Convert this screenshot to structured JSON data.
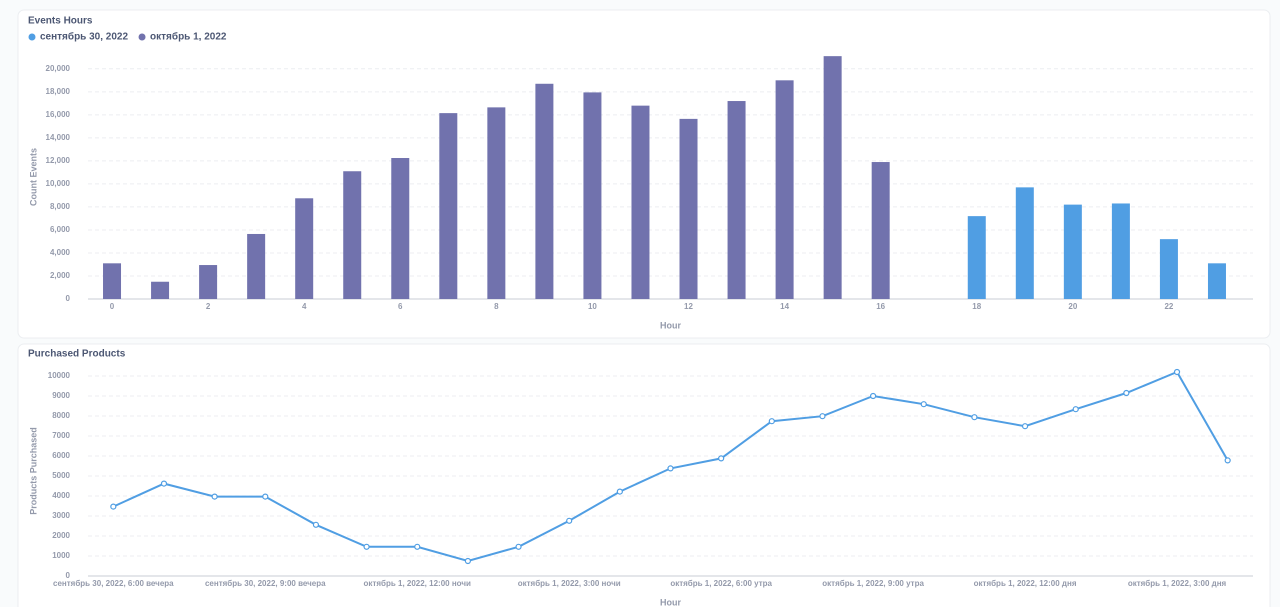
{
  "chart_data": [
    {
      "type": "bar",
      "title": "Events Hours",
      "x_label": "Hour",
      "y_label": "Count Events",
      "x": [
        0,
        1,
        2,
        3,
        4,
        5,
        6,
        7,
        8,
        9,
        10,
        11,
        12,
        13,
        14,
        15,
        16,
        17,
        18,
        19,
        20,
        21,
        22,
        23
      ],
      "series": [
        {
          "name": "сентябрь 30, 2022",
          "color": "#509ee3",
          "values": [
            null,
            null,
            null,
            null,
            null,
            null,
            null,
            null,
            null,
            null,
            null,
            null,
            null,
            null,
            null,
            null,
            null,
            null,
            7200,
            9700,
            8200,
            8300,
            5200,
            3100
          ]
        },
        {
          "name": "октябрь 1, 2022",
          "color": "#7172ad",
          "values": [
            3100,
            1500,
            2950,
            5650,
            8750,
            11100,
            12250,
            16150,
            16650,
            18700,
            17950,
            16800,
            15650,
            17200,
            19000,
            21100,
            11900,
            null,
            null,
            null,
            null,
            null,
            null,
            null
          ]
        }
      ],
      "xlim": [
        -0.5,
        23.75
      ],
      "xticks": [
        0,
        2,
        4,
        6,
        8,
        10,
        12,
        14,
        16,
        18,
        20,
        22
      ],
      "ylim": [
        0,
        21200
      ],
      "yticks": [
        0,
        {
          "value": 2000,
          "label": "2,000"
        },
        {
          "value": 4000,
          "label": "4,000"
        },
        {
          "value": 6000,
          "label": "6,000"
        },
        {
          "value": 8000,
          "label": "8,000"
        },
        {
          "value": 10000,
          "label": "10,000"
        },
        {
          "value": 12000,
          "label": "12,000"
        },
        {
          "value": 14000,
          "label": "14,000"
        },
        {
          "value": 16000,
          "label": "16,000"
        },
        {
          "value": 18000,
          "label": "18,000"
        },
        {
          "value": 20000,
          "label": "20,000"
        }
      ],
      "grid": true,
      "legend": "top-left"
    },
    {
      "type": "line",
      "title": "Purchased Products",
      "x_label": "Hour",
      "y_label": "Products Purchased",
      "categories": [
        "сентябрь 30, 2022, 6:00 вечера",
        null,
        null,
        "сентябрь 30, 2022, 9:00 вечера",
        null,
        null,
        "октябрь 1, 2022, 12:00 ночи",
        null,
        null,
        "октябрь 1, 2022, 3:00 ночи",
        null,
        null,
        "октябрь 1, 2022, 6:00 утра",
        null,
        null,
        "октябрь 1, 2022, 9:00 утра",
        null,
        null,
        "октябрь 1, 2022, 12:00 дня",
        null,
        null,
        "октябрь 1, 2022, 3:00 дня",
        null
      ],
      "series": [
        {
          "name": "Products Purchased",
          "color": "#509ee3",
          "values": [
            3470,
            4620,
            3970,
            3970,
            2560,
            1460,
            1460,
            750,
            1460,
            2760,
            4220,
            5380,
            5880,
            7740,
            7990,
            9000,
            8590,
            7940,
            7490,
            8340,
            9150,
            10200,
            5780
          ]
        }
      ],
      "ylim": [
        0,
        10500
      ],
      "yticks": [
        0,
        1000,
        2000,
        3000,
        4000,
        5000,
        6000,
        7000,
        8000,
        9000,
        10000
      ],
      "grid": true
    }
  ]
}
